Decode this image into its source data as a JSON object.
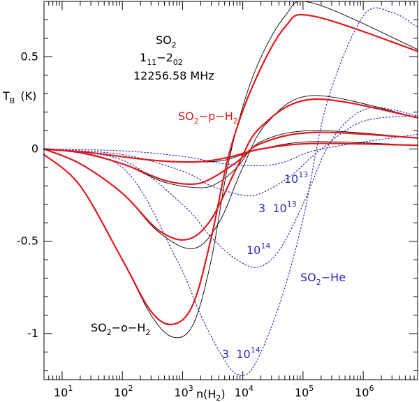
{
  "chart_data": {
    "type": "line",
    "title_block": {
      "molecule": "SO",
      "molecule_sub": "2",
      "transition_a": "1",
      "transition_a_sub": "11",
      "transition_sep": "−2",
      "transition_b_sub": "02",
      "frequency": "12256.58 MHz"
    },
    "ylabel_main": "T",
    "ylabel_sub": "B",
    "ylabel_unit": "(K)",
    "xlabel_main": "n(H",
    "xlabel_sub": "2",
    "xlabel_close": ")",
    "x_scale": "log",
    "xlim": [
      5,
      8000000
    ],
    "ylim": [
      -1.25,
      0.8
    ],
    "y_ticks": [
      {
        "value": 0.5,
        "label": "0.5"
      },
      {
        "value": 0,
        "label": "0"
      },
      {
        "value": -0.5,
        "label": "-0.5"
      },
      {
        "value": -1,
        "label": "-1"
      }
    ],
    "x_ticks": [
      {
        "value": 10,
        "base": "10",
        "exp": "1"
      },
      {
        "value": 100,
        "base": "10",
        "exp": "2"
      },
      {
        "value": 1000,
        "base": "10",
        "exp": "3"
      },
      {
        "value": 10000,
        "base": "10",
        "exp": "4"
      },
      {
        "value": 100000,
        "base": "10",
        "exp": "5"
      },
      {
        "value": 1000000,
        "base": "10",
        "exp": "6"
      }
    ],
    "colors": {
      "pH2": "#e0191e",
      "oH2": "#000000",
      "He": "#2a2aba"
    },
    "series": [
      {
        "name": "SO2-p-H2 1e13",
        "group": "pH2",
        "x": [
          5,
          30,
          300,
          1500,
          5000,
          20000,
          150000,
          8000000
        ],
        "y": [
          0,
          -0.02,
          -0.06,
          -0.07,
          -0.05,
          0.0,
          0.03,
          0.02
        ]
      },
      {
        "name": "SO2-p-H2 3e13",
        "group": "pH2",
        "x": [
          5,
          20,
          100,
          500,
          1500,
          3000,
          8000,
          20000,
          150000,
          8000000
        ],
        "y": [
          0,
          -0.02,
          -0.08,
          -0.17,
          -0.19,
          -0.16,
          -0.07,
          0.03,
          0.09,
          0.06
        ]
      },
      {
        "name": "SO2-p-H2 1e14",
        "group": "pH2",
        "x": [
          5,
          20,
          100,
          400,
          1200,
          3000,
          8000,
          20000,
          150000,
          8000000
        ],
        "y": [
          0,
          -0.08,
          -0.24,
          -0.44,
          -0.49,
          -0.38,
          -0.1,
          0.12,
          0.27,
          0.17
        ]
      },
      {
        "name": "SO2-p-H2 3e14",
        "group": "pH2",
        "x": [
          5,
          20,
          100,
          300,
          700,
          1500,
          3000,
          6000,
          15000,
          50000,
          150000,
          8000000
        ],
        "y": [
          -0.03,
          -0.2,
          -0.6,
          -0.88,
          -0.95,
          -0.84,
          -0.48,
          -0.02,
          0.35,
          0.66,
          0.72,
          0.53
        ]
      },
      {
        "name": "SO2-o-H2 1e13",
        "group": "oH2",
        "x": [
          5,
          30,
          300,
          1500,
          5000,
          20000,
          150000,
          8000000
        ],
        "y": [
          0,
          -0.02,
          -0.06,
          -0.07,
          -0.06,
          0.0,
          0.04,
          0.02
        ]
      },
      {
        "name": "SO2-o-H2 3e13",
        "group": "oH2",
        "x": [
          5,
          20,
          100,
          500,
          2000,
          4000,
          8000,
          20000,
          150000,
          8000000
        ],
        "y": [
          0,
          -0.02,
          -0.08,
          -0.18,
          -0.21,
          -0.18,
          -0.1,
          0.04,
          0.1,
          0.06
        ]
      },
      {
        "name": "SO2-o-H2 1e14",
        "group": "oH2",
        "x": [
          5,
          20,
          100,
          400,
          1500,
          4000,
          10000,
          25000,
          150000,
          8000000
        ],
        "y": [
          0,
          -0.08,
          -0.24,
          -0.45,
          -0.54,
          -0.4,
          -0.1,
          0.14,
          0.29,
          0.17
        ]
      },
      {
        "name": "SO2-o-H2 3e14",
        "group": "oH2",
        "x": [
          5,
          20,
          100,
          300,
          700,
          1500,
          3000,
          6000,
          15000,
          50000,
          150000,
          8000000
        ],
        "y": [
          -0.03,
          -0.2,
          -0.6,
          -0.9,
          -1.02,
          -0.95,
          -0.6,
          -0.05,
          0.4,
          0.72,
          0.79,
          0.54
        ]
      },
      {
        "name": "SO2-He 1e13",
        "group": "He",
        "x": [
          5,
          100,
          1000,
          5000,
          20000,
          50000,
          200000,
          8000000
        ],
        "y": [
          0,
          -0.01,
          -0.04,
          -0.08,
          -0.09,
          -0.07,
          0.0,
          0.08
        ]
      },
      {
        "name": "SO2-He 3e13",
        "group": "He",
        "x": [
          5,
          100,
          1000,
          3000,
          10000,
          20000,
          60000,
          200000,
          1000000,
          8000000
        ],
        "y": [
          0,
          -0.03,
          -0.12,
          -0.2,
          -0.25,
          -0.24,
          -0.15,
          0.0,
          0.15,
          0.18
        ]
      },
      {
        "name": "SO2-He 1e14",
        "group": "He",
        "x": [
          5,
          100,
          1000,
          3000,
          8000,
          18000,
          40000,
          100000,
          300000,
          1200000,
          8000000
        ],
        "y": [
          0,
          -0.06,
          -0.3,
          -0.48,
          -0.6,
          -0.64,
          -0.55,
          -0.3,
          0.05,
          0.22,
          0.18
        ]
      },
      {
        "name": "SO2-He 3e14",
        "group": "He",
        "x": [
          5,
          100,
          800,
          2000,
          4500,
          8000,
          15000,
          40000,
          100000,
          250000,
          1000000,
          3000000,
          8000000
        ],
        "y": [
          0,
          -0.1,
          -0.6,
          -0.9,
          -1.12,
          -1.22,
          -1.18,
          -0.85,
          -0.38,
          0.25,
          0.72,
          0.74,
          0.66
        ]
      }
    ],
    "labels": {
      "pH2": {
        "main": "SO",
        "sub": "2",
        "rest": "−p−H",
        "sub2": "2"
      },
      "oH2": {
        "main": "SO",
        "sub": "2",
        "rest": "−o−H",
        "sub2": "2"
      },
      "He": {
        "main": "SO",
        "sub": "2",
        "rest": "−He"
      },
      "col_1e13": {
        "base": "10",
        "exp": "13"
      },
      "col_3e13": {
        "prefix": "3  10",
        "exp": "13"
      },
      "col_1e14": {
        "base": "10",
        "exp": "14"
      },
      "col_3e14": {
        "prefix": "3  10",
        "exp": "14"
      }
    }
  }
}
